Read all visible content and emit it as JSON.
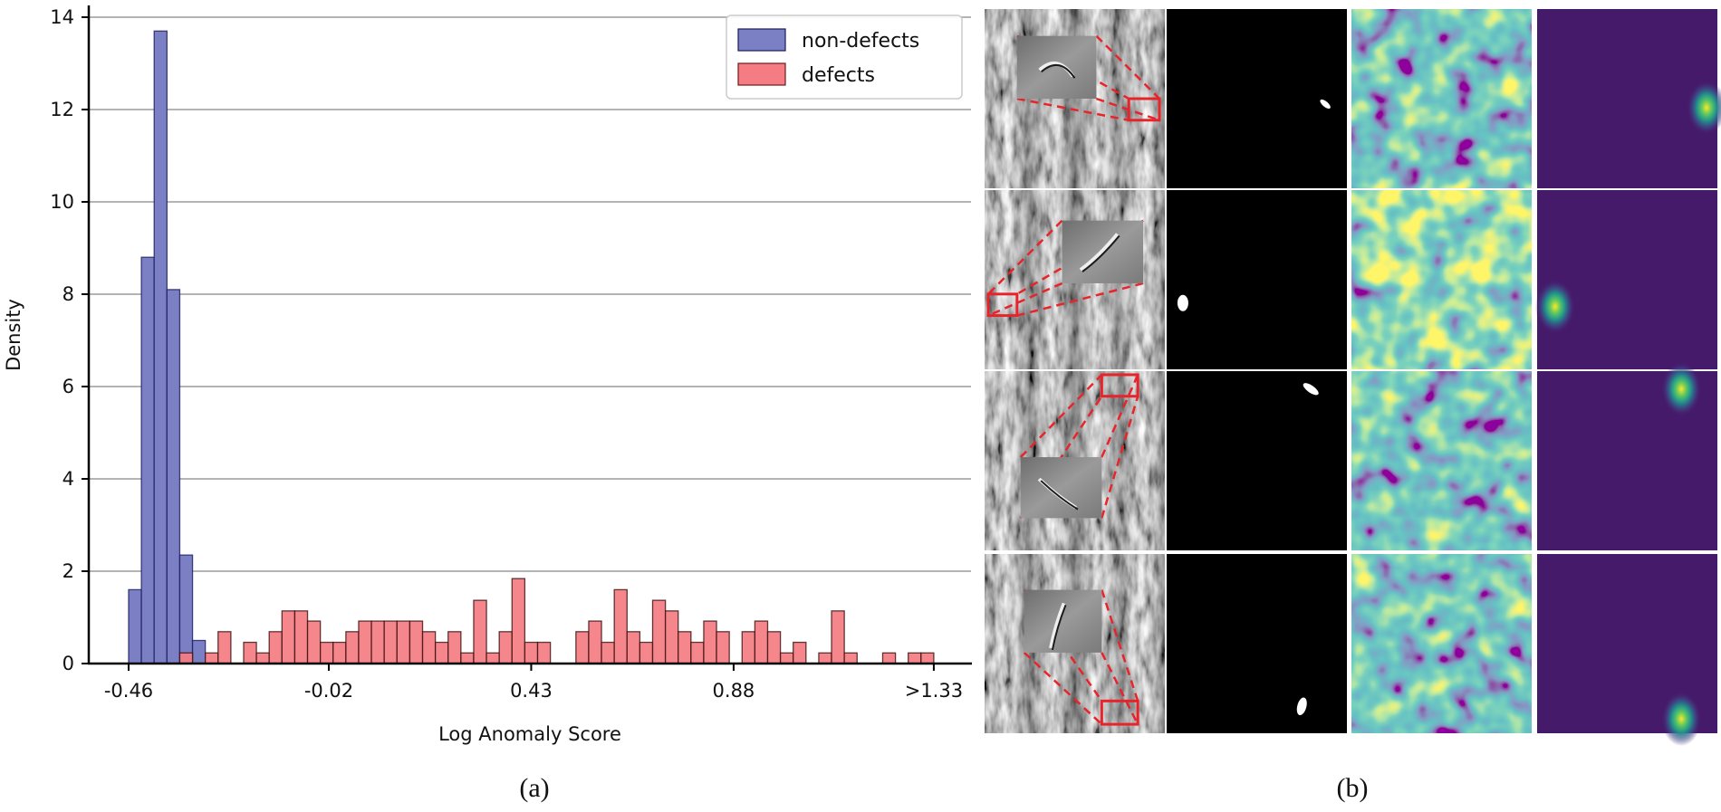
{
  "chart_data": {
    "type": "bar",
    "subtype": "overlaid histogram",
    "xlabel": "Log Anomaly Score",
    "ylabel": "Density",
    "x_ticks": [
      "-0.46",
      "-0.02",
      "0.43",
      "0.88",
      ">1.33"
    ],
    "x_tick_values": [
      -0.46,
      -0.015,
      0.435,
      0.885,
      1.33
    ],
    "y_ticks": [
      "0",
      "2",
      "4",
      "6",
      "8",
      "10",
      "12",
      "14"
    ],
    "x_range": [
      -0.46,
      1.33
    ],
    "bins": 63,
    "ylim": [
      0,
      14.3
    ],
    "grid": "horizontal",
    "legend_position": "top-right",
    "series": [
      {
        "name": "non-defects",
        "color": "#7b7fc4",
        "values": [
          1.6,
          8.8,
          13.7,
          8.1,
          2.35,
          0.5,
          0,
          0,
          0,
          0,
          0,
          0,
          0,
          0,
          0,
          0,
          0,
          0,
          0,
          0,
          0,
          0,
          0,
          0,
          0,
          0,
          0,
          0,
          0,
          0,
          0,
          0,
          0,
          0,
          0,
          0,
          0,
          0,
          0,
          0,
          0,
          0,
          0,
          0,
          0,
          0,
          0,
          0,
          0,
          0,
          0,
          0,
          0,
          0,
          0,
          0,
          0,
          0,
          0,
          0,
          0,
          0,
          0
        ]
      },
      {
        "name": "defects",
        "color": "#f47c82",
        "values": [
          0,
          0,
          0,
          0,
          0.23,
          0,
          0.23,
          0.69,
          0,
          0.46,
          0.23,
          0.69,
          1.14,
          1.14,
          0.92,
          0.46,
          0.46,
          0.69,
          0.92,
          0.92,
          0.92,
          0.92,
          0.92,
          0.69,
          0.46,
          0.69,
          0.23,
          1.37,
          0.23,
          0.69,
          1.84,
          0.46,
          0.46,
          0,
          0,
          0.69,
          0.92,
          0.46,
          1.6,
          0.69,
          0.46,
          1.37,
          1.14,
          0.69,
          0.46,
          0.92,
          0.69,
          0,
          0.69,
          0.92,
          0.69,
          0.23,
          0.46,
          0,
          0.23,
          1.14,
          0.23,
          0,
          0,
          0.23,
          0,
          0.23,
          0.23
        ]
      }
    ]
  },
  "panel_b": {
    "columns": [
      "grayscale-image-with-zoom-inset",
      "ground-truth-mask",
      "feature-map",
      "anomaly-heatmap"
    ],
    "rows": 4
  },
  "captions": {
    "a": "(a)",
    "b": "(b)"
  }
}
